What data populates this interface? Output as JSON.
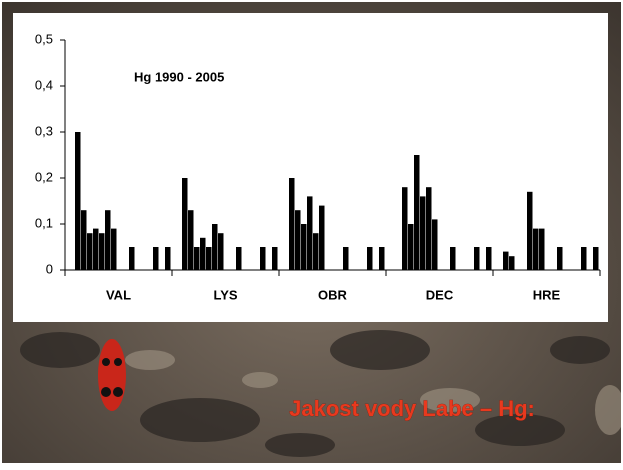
{
  "title": "Jakost vody Labe – Hg:",
  "chart_data": {
    "type": "bar",
    "annotation": "Hg 1990 - 2005",
    "categories": [
      "VAL",
      "LYS",
      "OBR",
      "DEC",
      "HRE"
    ],
    "color": "#000000",
    "series": [
      {
        "values": [
          0.3,
          0.2,
          0.2,
          null,
          0.04
        ]
      },
      {
        "values": [
          0.13,
          0.13,
          0.13,
          0.18,
          0.03
        ]
      },
      {
        "values": [
          0.08,
          0.05,
          0.1,
          0.1,
          null
        ]
      },
      {
        "values": [
          0.09,
          0.07,
          0.16,
          0.25,
          null
        ]
      },
      {
        "values": [
          0.08,
          0.05,
          0.08,
          0.16,
          0.17
        ]
      },
      {
        "values": [
          0.13,
          0.1,
          0.14,
          0.18,
          0.09
        ]
      },
      {
        "values": [
          0.09,
          0.08,
          null,
          0.11,
          0.09
        ]
      },
      {
        "values": [
          null,
          null,
          null,
          null,
          null
        ]
      },
      {
        "values": [
          null,
          null,
          null,
          null,
          null
        ]
      },
      {
        "values": [
          0.05,
          0.05,
          0.05,
          0.05,
          0.05
        ]
      },
      {
        "values": [
          null,
          null,
          null,
          null,
          null
        ]
      },
      {
        "values": [
          null,
          null,
          null,
          null,
          null
        ]
      },
      {
        "values": [
          null,
          null,
          null,
          null,
          null
        ]
      },
      {
        "values": [
          0.05,
          0.05,
          0.05,
          0.05,
          0.05
        ]
      },
      {
        "values": [
          null,
          null,
          null,
          null,
          null
        ]
      },
      {
        "values": [
          0.05,
          0.05,
          0.05,
          0.05,
          0.05
        ]
      }
    ],
    "ylim": [
      0,
      0.5
    ],
    "yticks": [
      0,
      {
        "value": 0.1,
        "label": "0,1"
      },
      {
        "value": 0.2,
        "label": "0,2"
      },
      {
        "value": 0.3,
        "label": "0,3"
      },
      {
        "value": 0.4,
        "label": "0,4"
      },
      {
        "value": 0.5,
        "label": "0,5"
      }
    ]
  }
}
